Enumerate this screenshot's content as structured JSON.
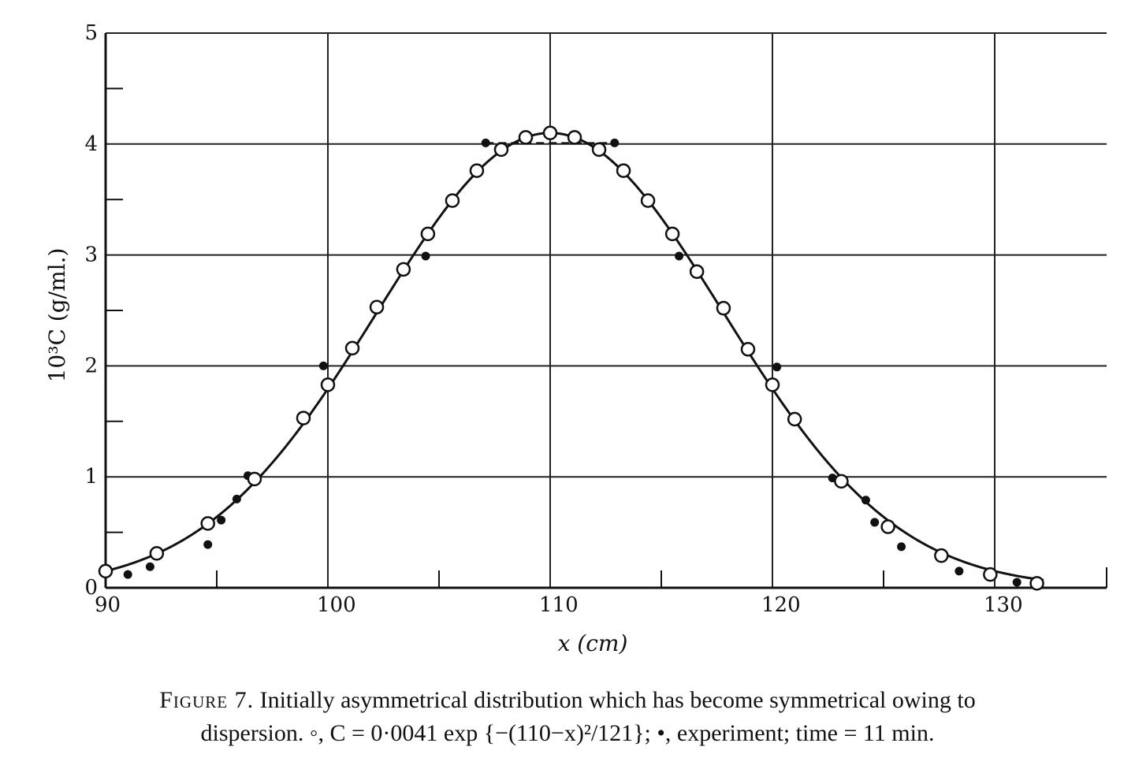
{
  "caption": {
    "figure_label": "Figure 7.",
    "line1_text": "Initially asymmetrical distribution which has become symmetrical owing to",
    "line2_text": "dispersion. ◦, C = 0·0041 exp {−(110−x)²/121}; •, experiment; time = 11 min."
  },
  "chart_data": {
    "type": "scatter",
    "title": "",
    "xlabel": "x (cm)",
    "ylabel": "10³C (g/ml.)",
    "xlim": [
      90,
      135
    ],
    "ylim": [
      0,
      5
    ],
    "x_ticks": [
      90,
      100,
      110,
      120,
      130
    ],
    "y_ticks": [
      0,
      1,
      2,
      3,
      4,
      5
    ],
    "grid": true,
    "series": [
      {
        "name": "C = 0·0041 exp {−(110−x)²/121}",
        "marker": "open-circle",
        "x": [
          90.0,
          92.3,
          94.6,
          96.7,
          98.9,
          100.0,
          101.1,
          102.2,
          103.4,
          104.5,
          105.6,
          106.7,
          107.8,
          108.9,
          110.0,
          111.1,
          112.2,
          113.3,
          114.4,
          115.5,
          116.6,
          117.8,
          118.9,
          120.0,
          121.0,
          123.1,
          125.2,
          127.6,
          129.8,
          131.9
        ],
        "y": [
          0.15,
          0.31,
          0.58,
          0.98,
          1.53,
          1.83,
          2.16,
          2.53,
          2.87,
          3.19,
          3.49,
          3.76,
          3.95,
          4.06,
          4.1,
          4.06,
          3.95,
          3.76,
          3.49,
          3.19,
          2.85,
          2.52,
          2.15,
          1.83,
          1.52,
          0.96,
          0.55,
          0.29,
          0.12,
          0.04
        ]
      },
      {
        "name": "experiment",
        "marker": "filled-circle",
        "x": [
          91.0,
          92.0,
          94.6,
          95.2,
          95.9,
          96.4,
          99.8,
          104.4,
          107.1,
          112.9,
          115.8,
          120.2,
          122.7,
          124.2,
          124.6,
          125.8,
          128.4,
          131.0
        ],
        "y": [
          0.12,
          0.19,
          0.39,
          0.61,
          0.8,
          1.01,
          2.0,
          2.99,
          4.01,
          4.01,
          2.99,
          1.99,
          0.99,
          0.79,
          0.59,
          0.37,
          0.15,
          0.05
        ]
      },
      {
        "name": "curve",
        "marker": "line",
        "equation_amplitude": 4.1,
        "equation_center": 110,
        "equation_denominator": 121
      }
    ],
    "colors": {
      "ink": "#111111",
      "grid": "#222222",
      "background": "#ffffff"
    }
  }
}
